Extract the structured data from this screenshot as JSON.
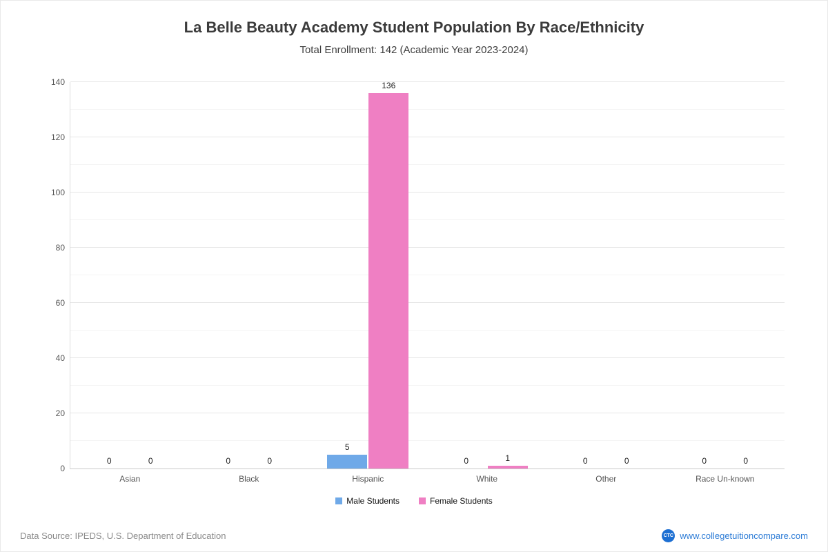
{
  "header": {
    "title": "La Belle Beauty Academy Student Population By Race/Ethnicity",
    "subtitle": "Total Enrollment: 142 (Academic Year 2023-2024)"
  },
  "chart_data": {
    "type": "bar",
    "title": "La Belle Beauty Academy Student Population By Race/Ethnicity",
    "subtitle": "Total Enrollment: 142 (Academic Year 2023-2024)",
    "categories": [
      "Asian",
      "Black",
      "Hispanic",
      "White",
      "Other",
      "Race Un-known"
    ],
    "series": [
      {
        "name": "Male Students",
        "color": "#6fa9e8",
        "values": [
          0,
          0,
          5,
          0,
          0,
          0
        ]
      },
      {
        "name": "Female Students",
        "color": "#ef7fc3",
        "values": [
          0,
          0,
          136,
          1,
          0,
          0
        ]
      }
    ],
    "ylim": [
      0,
      140
    ],
    "yticks": [
      0,
      20,
      40,
      60,
      80,
      100,
      120,
      140
    ],
    "minor_tick_step": 10,
    "grid": true,
    "value_labels": true,
    "legend_position": "bottom"
  },
  "footer": {
    "source": "Data Source: IPEDS, U.S. Department of Education",
    "logo_text": "CTC",
    "website": "www.collegetuitioncompare.com"
  }
}
